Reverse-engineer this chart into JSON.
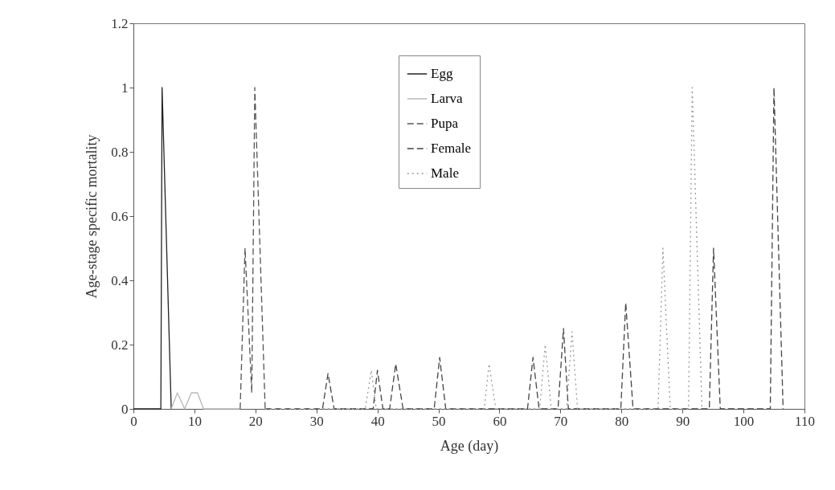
{
  "chart_data": {
    "type": "line",
    "xlabel": "Age (day)",
    "ylabel": "Age-stage specific mortality",
    "xlim": [
      0,
      110
    ],
    "xticks": [
      0,
      10,
      20,
      30,
      40,
      50,
      60,
      70,
      80,
      90,
      100,
      110
    ],
    "ylim": [
      0,
      1.2
    ],
    "yticks": [
      0,
      0.2,
      0.4,
      0.6,
      0.8,
      1,
      1.2
    ],
    "grid": false,
    "legend": "top",
    "marker": "none",
    "series": [
      {
        "name": "Egg",
        "color": "#222222",
        "line_style": "solid",
        "x": [
          0,
          4.5,
          4.7,
          6.2
        ],
        "values": [
          0,
          0,
          1,
          0
        ]
      },
      {
        "name": "Larva",
        "color": "#b8b8b8",
        "line_style": "solid",
        "x": [
          6.2,
          7.2,
          8.4,
          9.5,
          10.5,
          11.5,
          17.5
        ],
        "values": [
          0,
          0.05,
          0,
          0.05,
          0.05,
          0,
          0
        ]
      },
      {
        "name": "Pupa",
        "color": "#555555",
        "line_style": "dashed",
        "x": [
          17.5,
          18.3,
          19.4,
          19.9,
          21.6
        ],
        "values": [
          0,
          0.5,
          0.05,
          1,
          0
        ]
      },
      {
        "name": "Female",
        "color": "#444444",
        "line_style": "dashed",
        "x": [
          21.6,
          31.0,
          31.9,
          32.9,
          39.3,
          40.0,
          40.9,
          42.0,
          43.0,
          44.2,
          49.3,
          50.2,
          51.2,
          64.6,
          65.5,
          66.5,
          69.6,
          70.5,
          71.3,
          79.9,
          80.7,
          81.9,
          94.4,
          95.1,
          96.2,
          104.4,
          105.0,
          106.5
        ],
        "values": [
          0,
          0,
          0.11,
          0,
          0,
          0.12,
          0,
          0,
          0.14,
          0,
          0,
          0.16,
          0,
          0,
          0.16,
          0,
          0,
          0.25,
          0,
          0,
          0.33,
          0,
          0,
          0.5,
          0,
          0,
          1,
          0
        ]
      },
      {
        "name": "Male",
        "color": "#999999",
        "line_style": "dotted",
        "x": [
          21.6,
          38.0,
          39.0,
          39.8,
          57.5,
          58.3,
          59.4,
          66.6,
          67.5,
          68.5,
          71.0,
          71.9,
          72.8,
          86.0,
          86.8,
          88.0,
          91.0,
          91.6,
          93.2
        ],
        "values": [
          0,
          0,
          0.12,
          0,
          0,
          0.14,
          0,
          0,
          0.2,
          0,
          0,
          0.24,
          0,
          0,
          0.5,
          0,
          0,
          1,
          0
        ]
      }
    ]
  }
}
